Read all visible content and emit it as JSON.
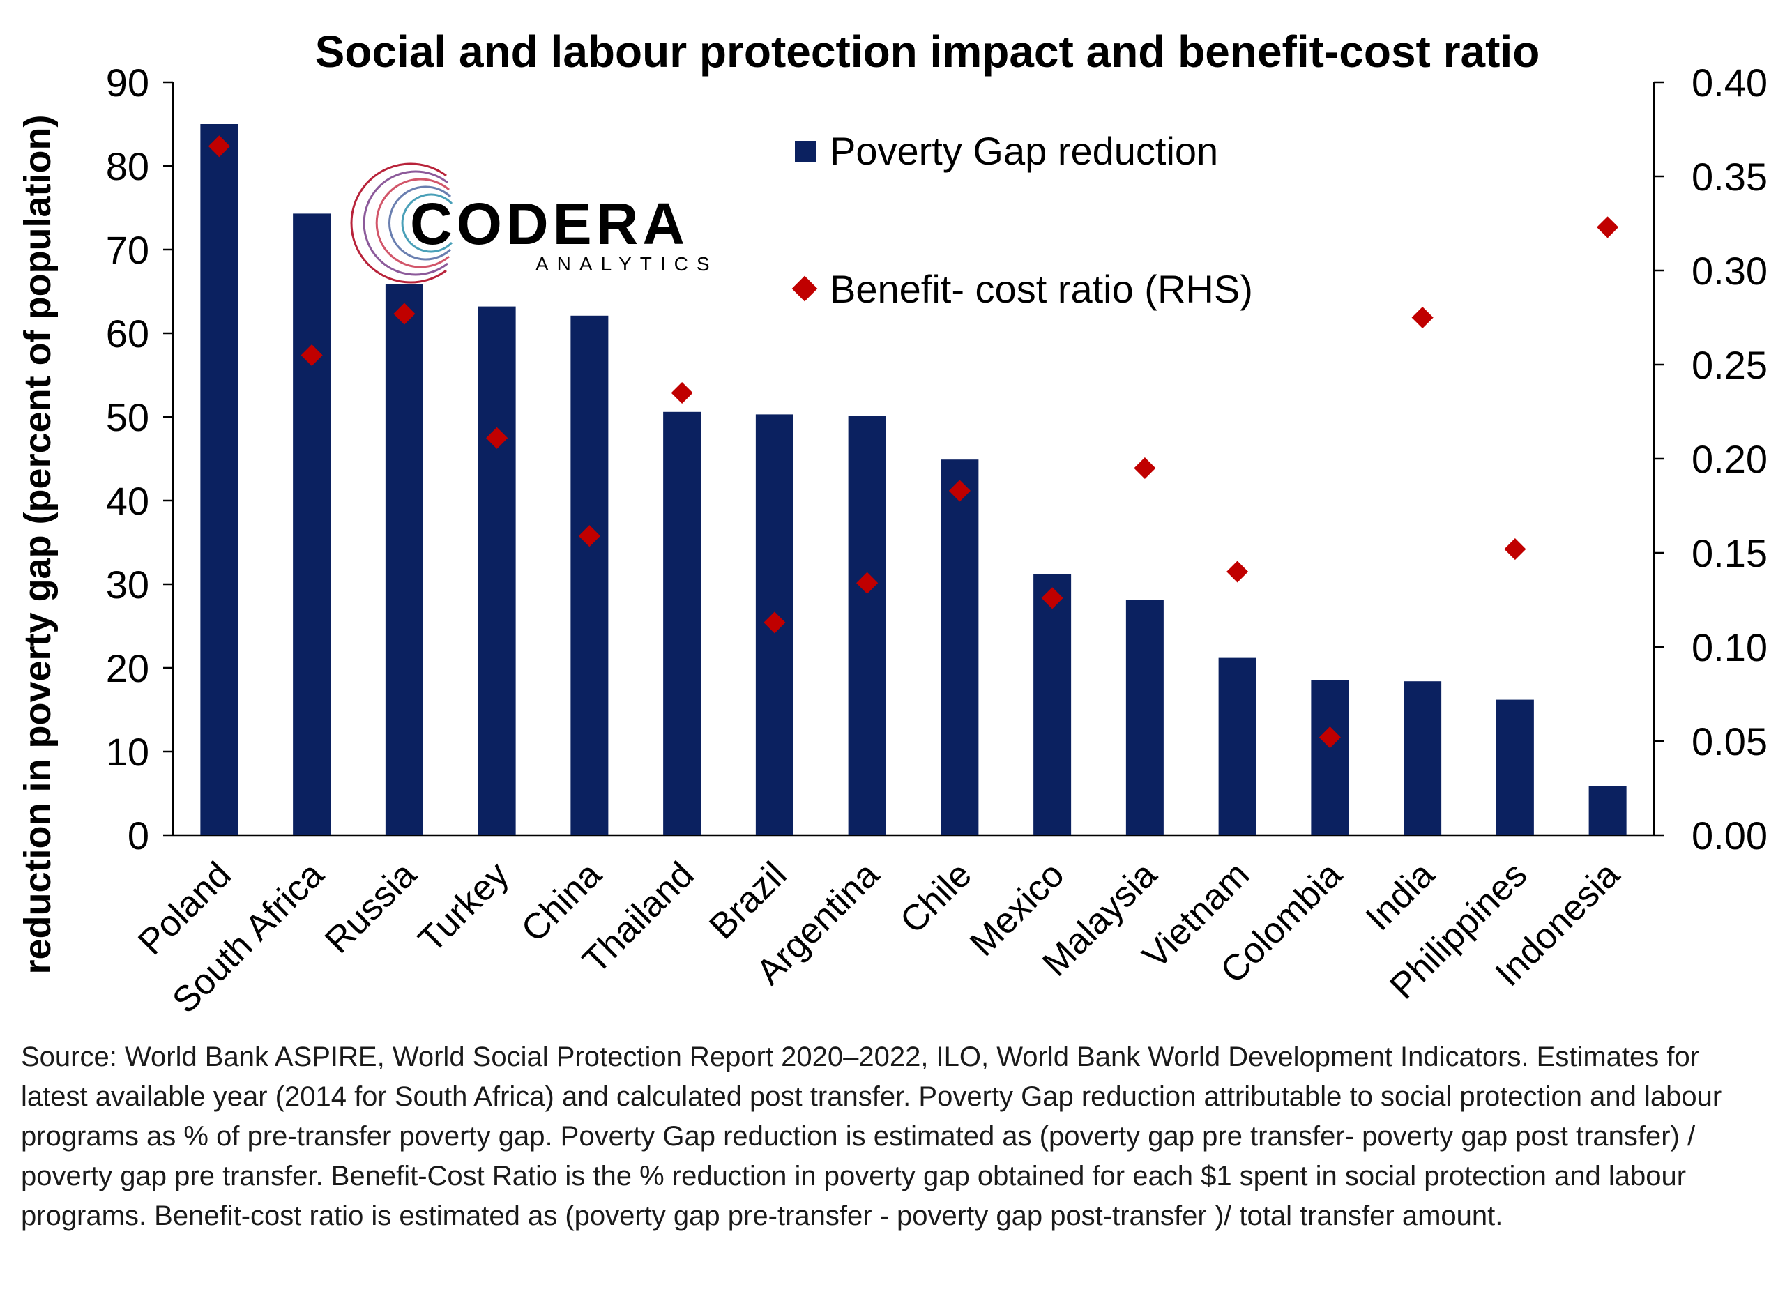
{
  "chart_data": {
    "type": "bar",
    "title": "Social and labour protection impact and benefit-cost ratio",
    "ylabel": "reduction in poverty gap (percent of population)",
    "ylim": [
      0,
      90
    ],
    "y_ticks": [
      0,
      10,
      20,
      30,
      40,
      50,
      60,
      70,
      80,
      90
    ],
    "y2lim": [
      0,
      0.4
    ],
    "y2_ticks": [
      "0.00",
      "0.05",
      "0.10",
      "0.15",
      "0.20",
      "0.25",
      "0.30",
      "0.35",
      "0.40"
    ],
    "categories": [
      "Poland",
      "South Africa",
      "Russia",
      "Turkey",
      "China",
      "Thailand",
      "Brazil",
      "Argentina",
      "Chile",
      "Mexico",
      "Malaysia",
      "Vietnam",
      "Colombia",
      "India",
      "Philippines",
      "Indonesia"
    ],
    "series": [
      {
        "name": "Poverty Gap reduction",
        "type": "bar",
        "axis": "left",
        "color": "#0b2160",
        "values": [
          85.0,
          74.3,
          65.9,
          63.2,
          62.1,
          50.6,
          50.3,
          50.1,
          44.9,
          31.2,
          28.1,
          21.2,
          18.5,
          18.4,
          16.2,
          5.9
        ]
      },
      {
        "name": "Benefit- cost ratio (RHS)",
        "type": "scatter",
        "axis": "right",
        "color": "#c00000",
        "values": [
          0.366,
          0.255,
          0.277,
          0.211,
          0.159,
          0.235,
          0.113,
          0.134,
          0.183,
          0.126,
          0.195,
          0.14,
          0.052,
          0.275,
          0.152,
          0.323
        ]
      }
    ],
    "legend": "top-center",
    "grid": false
  },
  "logo": {
    "name": "CODERA",
    "subtitle": "ANALYTICS"
  },
  "source_note": "Source: World Bank ASPIRE, World Social Protection Report 2020–2022, ILO, World Bank World Development Indicators. Estimates for latest available year (2014 for South Africa) and calculated post transfer. Poverty Gap reduction attributable to social protection and labour programs as % of pre-transfer poverty gap. Poverty Gap reduction is estimated as (poverty gap pre  transfer- poverty gap post transfer) / poverty gap pre transfer. Benefit-Cost Ratio is the % reduction in poverty gap obtained for each $1 spent in social protection and labour programs. Benefit-cost ratio is estimated as (poverty gap pre-transfer - poverty gap post-transfer )/ total transfer amount."
}
